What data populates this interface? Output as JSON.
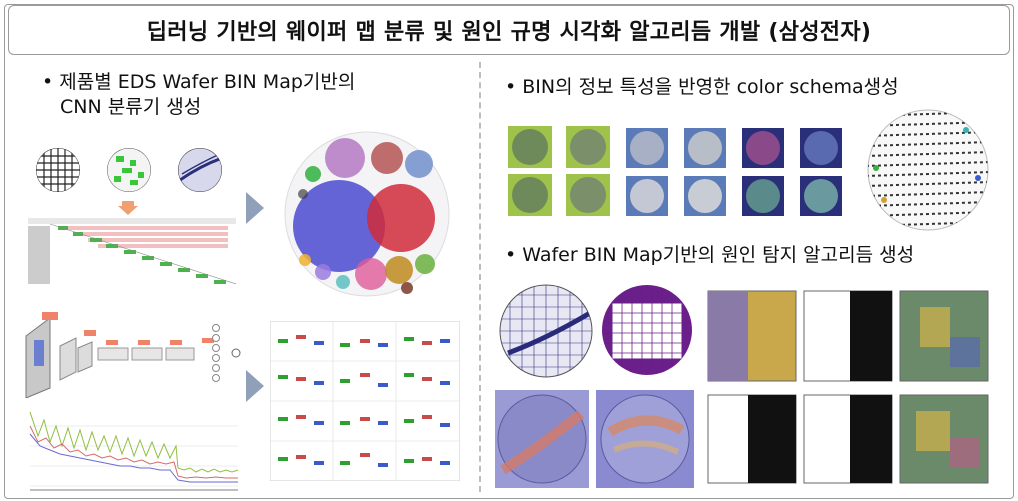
{
  "title": "딥러닝 기반의 웨이퍼 맵 분류 및 원인 규명 시각화 알고리듬 개발 (삼성전자)",
  "left": {
    "bullet_line1": "• 제품별 EDS Wafer BIN Map기반의",
    "bullet_line2": "CNN 분류기 생성"
  },
  "right": {
    "bullet_top": "• BIN의 정보 특성을 반영한 color schema생성",
    "bullet_bottom": "• Wafer BIN Map기반의 원인 탐지 알고리듬 생성"
  },
  "colors": {
    "arrow_orange": "#f0a070",
    "arrow_gray": "#8fa0b8",
    "bin_green": "#8fae3a",
    "bin_blue": "#5a7ab8",
    "bin_navy": "#2a2f7a",
    "purple": "#6a1f8a",
    "heat_yellow": "#d9b44a"
  }
}
